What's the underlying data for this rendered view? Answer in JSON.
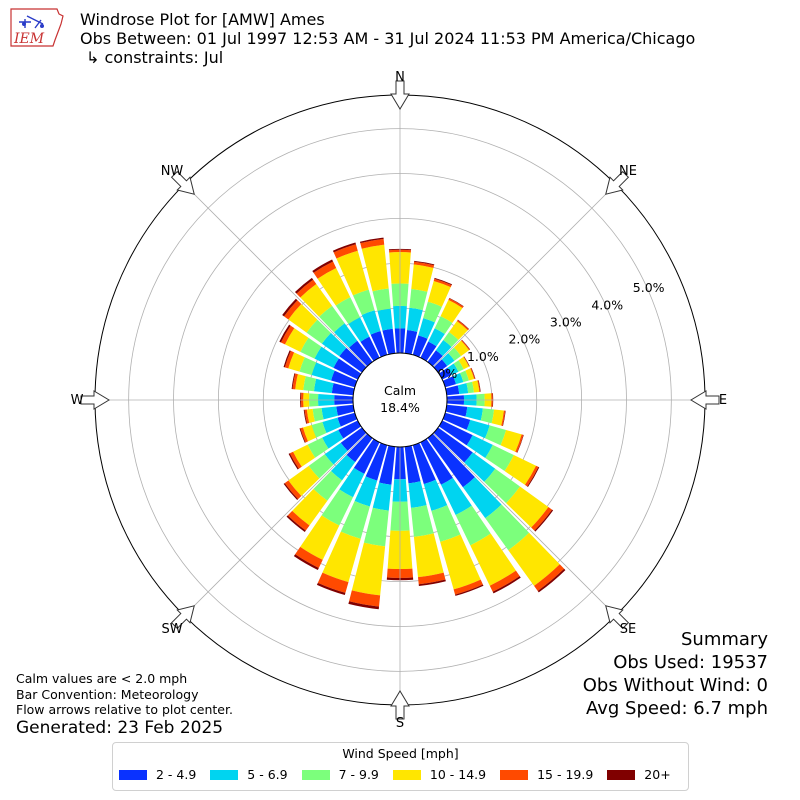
{
  "header": {
    "title": "Windrose Plot for [AMW] Ames",
    "subtitle": "Obs Between: 01 Jul 1997 12:53 AM - 31 Jul 2024 11:53 PM America/Chicago",
    "constraints": "↳ constraints: Jul"
  },
  "logo": {
    "text": "IEM"
  },
  "center": {
    "label": "Calm",
    "value": "18.4%"
  },
  "compass": {
    "N": "N",
    "NE": "NE",
    "E": "E",
    "SE": "SE",
    "S": "S",
    "SW": "SW",
    "W": "W",
    "NW": "NW"
  },
  "notes": {
    "line1": "Calm values are < 2.0 mph",
    "line2": "Bar Convention: Meteorology",
    "line3": "Flow arrows relative to plot center."
  },
  "generated": "Generated: 23 Feb 2025",
  "summary": {
    "title": "Summary",
    "obs_used": "Obs Used: 19537",
    "obs_without_wind": "Obs Without Wind: 0",
    "avg_speed": "Avg Speed: 6.7 mph"
  },
  "legend": {
    "title": "Wind Speed [mph]",
    "items": [
      {
        "label": "2 - 4.9",
        "color": "#0a32ff"
      },
      {
        "label": "5 - 6.9",
        "color": "#00d4f0"
      },
      {
        "label": "7 - 9.9",
        "color": "#7cff7c"
      },
      {
        "label": "10 - 14.9",
        "color": "#ffe600"
      },
      {
        "label": "15 - 19.9",
        "color": "#ff4a00"
      },
      {
        "label": "20+",
        "color": "#800000"
      }
    ]
  },
  "chart_data": {
    "type": "windrose",
    "radial_ticks": [
      "0.0%",
      "1.0%",
      "2.0%",
      "3.0%",
      "4.0%",
      "5.0%"
    ],
    "radial_max": 5.75,
    "calm_percent": 18.4,
    "direction_start_deg": 0,
    "direction_step_deg": 10,
    "speed_bins": [
      "2 - 4.9",
      "5 - 6.9",
      "7 - 9.9",
      "10 - 14.9",
      "15 - 19.9",
      "20+"
    ],
    "colors": [
      "#0a32ff",
      "#00d4f0",
      "#7cff7c",
      "#ffe600",
      "#ff4a00",
      "#800000"
    ],
    "directions": [
      0,
      10,
      20,
      30,
      40,
      50,
      60,
      70,
      80,
      90,
      100,
      110,
      120,
      130,
      140,
      150,
      160,
      170,
      180,
      190,
      200,
      210,
      220,
      230,
      240,
      250,
      260,
      270,
      280,
      290,
      300,
      310,
      320,
      330,
      340,
      350
    ],
    "series": [
      {
        "name": "2 - 4.9",
        "values": [
          0.55,
          0.52,
          0.45,
          0.4,
          0.32,
          0.25,
          0.23,
          0.25,
          0.28,
          0.38,
          0.46,
          0.58,
          0.75,
          0.95,
          1.35,
          1.05,
          0.9,
          0.82,
          0.72,
          0.85,
          0.82,
          0.78,
          0.66,
          0.58,
          0.48,
          0.4,
          0.38,
          0.42,
          0.48,
          0.55,
          0.6,
          0.62,
          0.58,
          0.52,
          0.55,
          0.55
        ]
      },
      {
        "name": "5 - 6.9",
        "values": [
          0.5,
          0.5,
          0.4,
          0.33,
          0.28,
          0.2,
          0.17,
          0.17,
          0.2,
          0.28,
          0.35,
          0.45,
          0.5,
          0.62,
          0.85,
          0.75,
          0.62,
          0.55,
          0.5,
          0.58,
          0.6,
          0.58,
          0.5,
          0.44,
          0.4,
          0.35,
          0.33,
          0.36,
          0.4,
          0.45,
          0.47,
          0.48,
          0.48,
          0.48,
          0.48,
          0.45
        ]
      },
      {
        "name": "7 - 9.9",
        "values": [
          0.5,
          0.42,
          0.38,
          0.3,
          0.22,
          0.18,
          0.13,
          0.13,
          0.13,
          0.18,
          0.25,
          0.38,
          0.52,
          0.68,
          0.88,
          0.75,
          0.72,
          0.65,
          0.65,
          0.8,
          0.75,
          0.7,
          0.56,
          0.44,
          0.36,
          0.25,
          0.2,
          0.2,
          0.24,
          0.28,
          0.35,
          0.42,
          0.48,
          0.5,
          0.48,
          0.45
        ]
      },
      {
        "name": "10 - 14.9",
        "values": [
          0.7,
          0.55,
          0.48,
          0.4,
          0.3,
          0.22,
          0.13,
          0.12,
          0.12,
          0.15,
          0.22,
          0.36,
          0.55,
          0.78,
          0.98,
          1.0,
          1.1,
          0.9,
          0.85,
          1.1,
          1.0,
          0.85,
          0.68,
          0.56,
          0.36,
          0.2,
          0.13,
          0.13,
          0.18,
          0.26,
          0.38,
          0.5,
          0.6,
          0.72,
          0.9,
          0.98
        ]
      },
      {
        "name": "15 - 19.9",
        "values": [
          0.05,
          0.06,
          0.05,
          0.04,
          0.03,
          0.02,
          0.01,
          0.02,
          0.02,
          0.03,
          0.03,
          0.04,
          0.06,
          0.1,
          0.14,
          0.15,
          0.12,
          0.16,
          0.2,
          0.25,
          0.25,
          0.2,
          0.14,
          0.1,
          0.08,
          0.06,
          0.05,
          0.05,
          0.06,
          0.08,
          0.1,
          0.12,
          0.12,
          0.16,
          0.15,
          0.13
        ]
      },
      {
        "name": "20+",
        "values": [
          0.02,
          0.02,
          0.02,
          0.01,
          0.01,
          0.01,
          0.01,
          0.01,
          0.01,
          0.01,
          0.01,
          0.01,
          0.02,
          0.03,
          0.04,
          0.04,
          0.03,
          0.04,
          0.05,
          0.06,
          0.05,
          0.05,
          0.04,
          0.03,
          0.03,
          0.02,
          0.02,
          0.02,
          0.02,
          0.03,
          0.04,
          0.05,
          0.05,
          0.05,
          0.04,
          0.03
        ]
      }
    ]
  }
}
